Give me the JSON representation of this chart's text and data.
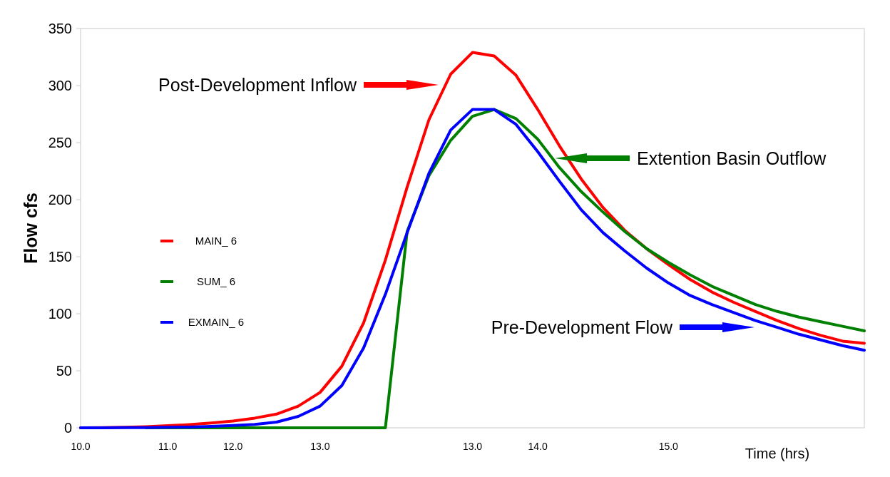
{
  "chart_data": {
    "type": "line",
    "xlabel": "Time (hrs)",
    "ylabel": "Flow cfs",
    "categories": [
      "10.0",
      null,
      null,
      null,
      "11.0",
      null,
      null,
      "12.0",
      null,
      null,
      null,
      "13.0",
      null,
      null,
      null,
      null,
      null,
      null,
      "13.0",
      null,
      null,
      "14.0",
      null,
      null,
      null,
      null,
      null,
      "15.0",
      null,
      null,
      null,
      null,
      null,
      null,
      null,
      null,
      null
    ],
    "ylim": [
      0,
      350
    ],
    "yticks": [
      0,
      50,
      100,
      150,
      200,
      250,
      300,
      350
    ],
    "grid": false,
    "legend": "left",
    "marker": "none",
    "line_style": "solid",
    "series": [
      {
        "name": "MAIN_ 6",
        "color": "#ff0000",
        "values": [
          0,
          0.2,
          0.5,
          1,
          1.8,
          2.8,
          4.2,
          6,
          8.5,
          12,
          19,
          31,
          54,
          92,
          147,
          211,
          270,
          310,
          329,
          326,
          309,
          279,
          247,
          218,
          193,
          173,
          157,
          143,
          130,
          119,
          110,
          102,
          94,
          87,
          81,
          76,
          74
        ]
      },
      {
        "name": "SUM_ 6",
        "color": "#008000",
        "values": [
          null,
          null,
          null,
          0,
          0,
          0,
          0,
          0,
          0,
          0,
          0,
          0,
          0,
          0,
          0,
          172,
          221,
          252,
          273,
          279,
          271,
          253,
          228,
          207,
          189,
          172,
          157,
          145,
          134,
          124,
          116,
          108,
          102,
          97,
          93,
          89,
          85
        ]
      },
      {
        "name": "EXMAIN_ 6",
        "color": "#0000ff",
        "values": [
          0,
          0,
          0.1,
          0.2,
          0.4,
          0.7,
          1.2,
          2,
          3,
          5,
          10,
          19,
          37,
          70,
          117,
          171,
          223,
          261,
          279,
          279,
          266,
          242,
          216,
          191,
          171,
          155,
          140,
          127,
          116,
          108,
          101,
          94,
          88,
          82,
          77,
          72,
          68
        ]
      }
    ],
    "annotations": [
      "Post-Development Inflow",
      "Extention Basin Outflow",
      "Pre-Development Flow"
    ]
  }
}
